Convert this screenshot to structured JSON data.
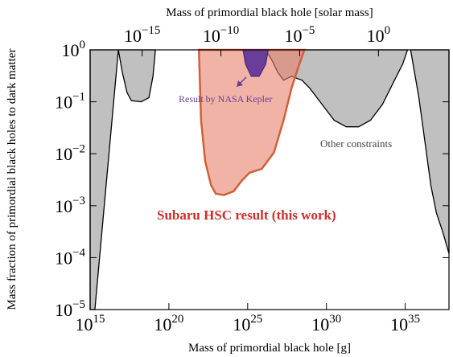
{
  "chart_data": {
    "type": "area",
    "xlabel": "Mass of primordial black hole [g]",
    "x2label": "Mass of primordial black hole [solar mass]",
    "ylabel": "Mass fraction of primordial black holes to dark matter",
    "xscale": "log",
    "yscale": "log",
    "xlim": [
      1000000000000000.0,
      6e+37
    ],
    "xticks": [
      {
        "value": 1000000000000000.0,
        "label": "10^15"
      },
      {
        "value": 1e+20,
        "label": "10^20"
      },
      {
        "value": 1e+25,
        "label": "10^25"
      },
      {
        "value": 1e+30,
        "label": "10^30"
      },
      {
        "value": 1e+35,
        "label": "10^35"
      }
    ],
    "x2lim": [
      5e-19,
      30000
    ],
    "x2ticks": [
      {
        "value": 1e-15,
        "label": "10^−15"
      },
      {
        "value": 1e-10,
        "label": "10^−10"
      },
      {
        "value": 1e-05,
        "label": "10^−5"
      },
      {
        "value": 1,
        "label": "10^0"
      }
    ],
    "ylim": [
      1e-05,
      1
    ],
    "yticks": [
      {
        "value": 1e-05,
        "label": "10^−5"
      },
      {
        "value": 0.0001,
        "label": "10^−4"
      },
      {
        "value": 0.001,
        "label": "10^−3"
      },
      {
        "value": 0.01,
        "label": "10^−2"
      },
      {
        "value": 0.1,
        "label": "10^−1"
      },
      {
        "value": 1,
        "label": "10^0"
      }
    ],
    "series": [
      {
        "color": "#c0c0c0",
        "x": [
          1000000000000000.0,
          2000000000000000.0,
          6.2e+16,
          1.1e+17,
          2.2e+17,
          4.1e+17,
          1.7e+18,
          5.4e+18,
          9.8e+18,
          1.4e+19,
          1000000000000000.0
        ],
        "values": [
          1e-05,
          1e-05,
          1,
          0.37,
          0.15,
          0.105,
          0.1,
          0.12,
          0.31,
          1,
          1
        ]
      },
      {
        "color": "#c0c0c0",
        "x": [
          1.4e+26,
          3.5e+26,
          8.1e+26,
          1.9e+27,
          6e+27,
          2.8e+28,
          9.1e+28,
          5.3e+29,
          3.1e+30,
          1.8e+31,
          1.1e+32,
          6.2e+32,
          3.6e+33,
          2.1e+34,
          6.9e+34,
          1.4e+35
        ],
        "values": [
          1,
          0.63,
          0.37,
          0.26,
          0.31,
          0.26,
          0.18,
          0.089,
          0.044,
          0.033,
          0.033,
          0.044,
          0.089,
          0.26,
          0.53,
          1
        ]
      },
      {
        "color": "#c0c0c0",
        "x": [
          2.2e+35,
          7.2e+35,
          1.9e+36,
          4.2e+36,
          9.6e+36,
          2.5e+37,
          6e+37,
          6e+37
        ],
        "values": [
          1,
          0.126,
          0.015,
          0.0025,
          0.00072,
          0.0003,
          0.00012,
          1
        ]
      },
      {
        "color": "#e8806a",
        "x": [
          8e+21,
          1.1e+22,
          2e+22,
          4.7e+22,
          9.5e+22,
          3.1e+23,
          1.3e+24,
          4.1e+24,
          1.3e+25,
          7.8e+25,
          4.6e+26,
          1.9e+27,
          6e+27,
          1.9e+28,
          4e+28
        ],
        "values": [
          1,
          0.044,
          0.0072,
          0.0025,
          0.0017,
          0.0016,
          0.0019,
          0.003,
          0.0043,
          0.0051,
          0.0105,
          0.044,
          0.18,
          0.53,
          1
        ]
      },
      {
        "color": "#6a3d9a",
        "x": [
          5.1e+24,
          7.4e+24,
          1.7e+25,
          5.4e+25,
          1.4e+26,
          2e+26
        ],
        "values": [
          1,
          0.53,
          0.31,
          0.31,
          0.53,
          1
        ]
      }
    ],
    "annotations": [
      "Subaru HSC result (this work)",
      "Result by NASA Kepler",
      "Other constraints"
    ]
  }
}
